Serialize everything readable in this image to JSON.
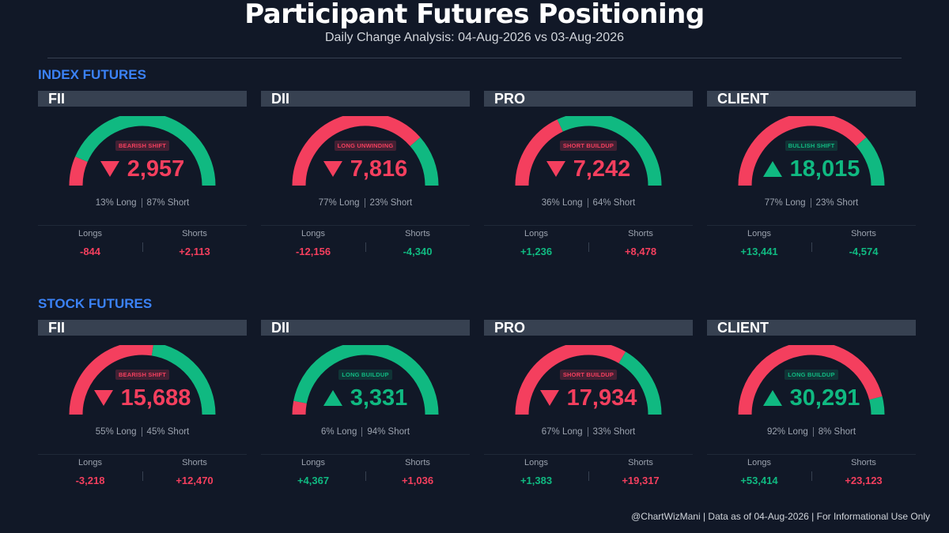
{
  "header": {
    "title": "Participant Futures Positioning",
    "subtitle": "Daily Change Analysis: 04-Aug-2026 vs 03-Aug-2026"
  },
  "colors": {
    "long": "#f43f5e",
    "short": "#10b981",
    "accent": "#3b82f6",
    "background": "#111827"
  },
  "labels": {
    "longs": "Longs",
    "shorts": "Shorts"
  },
  "footer": "@ChartWizMani | Data as of 04-Aug-2026 | For Informational Use Only",
  "chart_data": [
    {
      "type": "gauge-set",
      "section": "INDEX FUTURES",
      "participants": [
        {
          "name": "FII",
          "signal": "BEARISH SHIFT",
          "net_change": "2,957",
          "direction": "down",
          "long_pct": 13,
          "short_pct": 87,
          "ratio_long": "13% Long",
          "ratio_short": "87% Short",
          "longs_change": "-844",
          "shorts_change": "+2,113"
        },
        {
          "name": "DII",
          "signal": "LONG UNWINDING",
          "net_change": "7,816",
          "direction": "down",
          "long_pct": 77,
          "short_pct": 23,
          "ratio_long": "77% Long",
          "ratio_short": "23% Short",
          "longs_change": "-12,156",
          "shorts_change": "-4,340"
        },
        {
          "name": "PRO",
          "signal": "SHORT BUILDUP",
          "net_change": "7,242",
          "direction": "down",
          "long_pct": 36,
          "short_pct": 64,
          "ratio_long": "36% Long",
          "ratio_short": "64% Short",
          "longs_change": "+1,236",
          "shorts_change": "+8,478"
        },
        {
          "name": "CLIENT",
          "signal": "BULLISH SHIFT",
          "net_change": "18,015",
          "direction": "up",
          "long_pct": 77,
          "short_pct": 23,
          "ratio_long": "77% Long",
          "ratio_short": "23% Short",
          "longs_change": "+13,441",
          "shorts_change": "-4,574"
        }
      ]
    },
    {
      "type": "gauge-set",
      "section": "STOCK FUTURES",
      "participants": [
        {
          "name": "FII",
          "signal": "BEARISH SHIFT",
          "net_change": "15,688",
          "direction": "down",
          "long_pct": 55,
          "short_pct": 45,
          "ratio_long": "55% Long",
          "ratio_short": "45% Short",
          "longs_change": "-3,218",
          "shorts_change": "+12,470"
        },
        {
          "name": "DII",
          "signal": "LONG BUILDUP",
          "net_change": "3,331",
          "direction": "up",
          "long_pct": 6,
          "short_pct": 94,
          "ratio_long": "6% Long",
          "ratio_short": "94% Short",
          "longs_change": "+4,367",
          "shorts_change": "+1,036"
        },
        {
          "name": "PRO",
          "signal": "SHORT BUILDUP",
          "net_change": "17,934",
          "direction": "down",
          "long_pct": 67,
          "short_pct": 33,
          "ratio_long": "67% Long",
          "ratio_short": "33% Short",
          "longs_change": "+1,383",
          "shorts_change": "+19,317"
        },
        {
          "name": "CLIENT",
          "signal": "LONG BUILDUP",
          "net_change": "30,291",
          "direction": "up",
          "long_pct": 92,
          "short_pct": 8,
          "ratio_long": "92% Long",
          "ratio_short": "8% Short",
          "longs_change": "+53,414",
          "shorts_change": "+23,123"
        }
      ]
    }
  ]
}
